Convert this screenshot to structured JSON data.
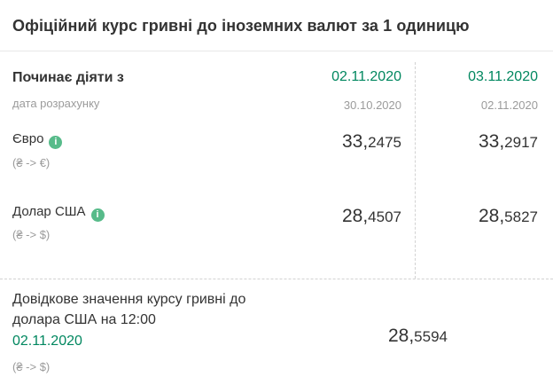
{
  "colors": {
    "accent_green": "#00875f",
    "icon_green": "#57bb8a",
    "text_dark": "#333333",
    "text_gray": "#9b9b9b",
    "divider_gray": "#e8e8e8",
    "dashed_gray": "#d2d2d2"
  },
  "title": "Офіційний курс гривні до іноземних валют за 1 одиницю",
  "icons": {
    "info_glyph": "i"
  },
  "table": {
    "header": {
      "label": "Починає діяти з",
      "sublabel": "дата розрахунку",
      "col1": {
        "effective_date": "02.11.2020",
        "calc_date": "30.10.2020"
      },
      "col2": {
        "effective_date": "03.11.2020",
        "calc_date": "02.11.2020"
      }
    },
    "rows": [
      {
        "name": "Євро",
        "pair": "(₴ -> €)",
        "col1": {
          "int": "33,",
          "frac": "2475"
        },
        "col2": {
          "int": "33,",
          "frac": "2917"
        }
      },
      {
        "name": "Долар США",
        "pair": "(₴ -> $)",
        "col1": {
          "int": "28,",
          "frac": "4507"
        },
        "col2": {
          "int": "28,",
          "frac": "5827"
        }
      }
    ]
  },
  "reference": {
    "text_line1": "Довідкове значення курсу гривні до",
    "text_line2": "долара США на 12:00",
    "date": "02.11.2020",
    "pair": "(₴ -> $)",
    "value": {
      "int": "28,",
      "frac": "5594"
    }
  }
}
